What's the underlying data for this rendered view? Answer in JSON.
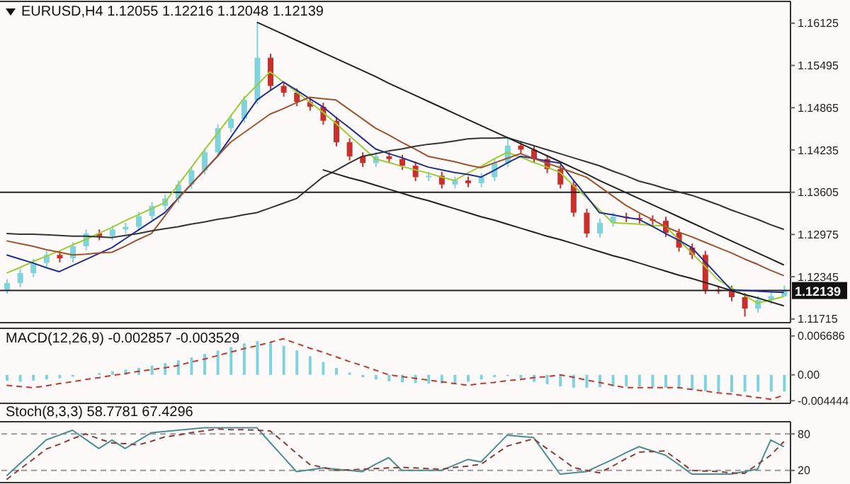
{
  "chart_data": [
    {
      "type": "candlestick",
      "title": "EURUSD,H4 1.12055 1.12216 1.12048 1.12139",
      "categories": [
        null,
        null,
        null,
        null,
        null,
        null,
        null,
        null,
        null,
        null,
        null,
        null,
        null,
        null,
        null,
        null,
        null,
        null,
        null,
        null,
        null,
        null,
        null,
        null,
        null,
        null,
        null,
        null,
        null,
        null,
        null,
        null,
        null,
        null,
        null,
        null,
        null,
        null,
        null,
        null,
        null,
        null,
        null,
        null,
        null,
        null,
        null,
        null,
        null,
        null,
        null,
        null,
        null,
        null,
        null,
        null,
        null,
        null,
        null,
        null
      ],
      "ohlc": [
        [
          1.1215,
          1.1231,
          1.1209,
          1.1225
        ],
        [
          1.1225,
          1.1246,
          1.1219,
          1.124
        ],
        [
          1.124,
          1.1261,
          1.1234,
          1.1255
        ],
        [
          1.1255,
          1.1273,
          1.1249,
          1.1267
        ],
        [
          1.1267,
          1.1273,
          1.1256,
          1.1262
        ],
        [
          1.1262,
          1.1286,
          1.1256,
          1.128
        ],
        [
          1.128,
          1.1305,
          1.1274,
          1.1299
        ],
        [
          1.1299,
          1.1305,
          1.1289,
          1.1295
        ],
        [
          1.1295,
          1.1311,
          1.1289,
          1.1305
        ],
        [
          1.1305,
          1.1315,
          1.1299,
          1.1309
        ],
        [
          1.1309,
          1.1331,
          1.1303,
          1.1325
        ],
        [
          1.1325,
          1.1346,
          1.1319,
          1.134
        ],
        [
          1.134,
          1.1357,
          1.1334,
          1.1351
        ],
        [
          1.1351,
          1.1378,
          1.1345,
          1.1372
        ],
        [
          1.1372,
          1.1399,
          1.1366,
          1.1393
        ],
        [
          1.1393,
          1.1426,
          1.1387,
          1.142
        ],
        [
          1.142,
          1.1462,
          1.1414,
          1.1456
        ],
        [
          1.1456,
          1.1476,
          1.145,
          1.147
        ],
        [
          1.147,
          1.1504,
          1.1464,
          1.1498
        ],
        [
          1.1498,
          1.1614,
          1.1492,
          1.1561
        ],
        [
          1.1561,
          1.1567,
          1.1513,
          1.1519
        ],
        [
          1.1519,
          1.1525,
          1.1503,
          1.1509
        ],
        [
          1.1509,
          1.1515,
          1.1489,
          1.1495
        ],
        [
          1.1495,
          1.1501,
          1.1482,
          1.1488
        ],
        [
          1.1488,
          1.1494,
          1.1461,
          1.1467
        ],
        [
          1.1467,
          1.1473,
          1.1429,
          1.1435
        ],
        [
          1.1435,
          1.1441,
          1.1408,
          1.1414
        ],
        [
          1.1414,
          1.142,
          1.1398,
          1.1404
        ],
        [
          1.1404,
          1.142,
          1.1398,
          1.1414
        ],
        [
          1.1414,
          1.142,
          1.1404,
          1.141
        ],
        [
          1.141,
          1.1416,
          1.1394,
          1.14
        ],
        [
          1.14,
          1.1406,
          1.1377,
          1.1383
        ],
        [
          1.1383,
          1.1391,
          1.1377,
          1.1385
        ],
        [
          1.1385,
          1.1391,
          1.1366,
          1.1372
        ],
        [
          1.1372,
          1.1384,
          1.1366,
          1.1378
        ],
        [
          1.1378,
          1.1384,
          1.1368,
          1.1374
        ],
        [
          1.1374,
          1.1389,
          1.1368,
          1.1383
        ],
        [
          1.1383,
          1.141,
          1.1377,
          1.1404
        ],
        [
          1.1404,
          1.1442,
          1.1398,
          1.143
        ],
        [
          1.143,
          1.1436,
          1.1418,
          1.1424
        ],
        [
          1.1424,
          1.143,
          1.1404,
          1.141
        ],
        [
          1.141,
          1.1416,
          1.1389,
          1.1395
        ],
        [
          1.1395,
          1.1401,
          1.1366,
          1.1372
        ],
        [
          1.1372,
          1.1378,
          1.1324,
          1.133
        ],
        [
          1.133,
          1.1336,
          1.1293,
          1.1299
        ],
        [
          1.1299,
          1.1321,
          1.1293,
          1.1315
        ],
        [
          1.1315,
          1.133,
          1.1309,
          1.1324
        ],
        [
          1.1324,
          1.133,
          1.1316,
          1.1322
        ],
        [
          1.1322,
          1.1328,
          1.1314,
          1.132
        ],
        [
          1.132,
          1.1326,
          1.1312,
          1.1318
        ],
        [
          1.1318,
          1.1324,
          1.1294,
          1.13
        ],
        [
          1.13,
          1.1306,
          1.1272,
          1.1278
        ],
        [
          1.1278,
          1.1284,
          1.1261,
          1.1267
        ],
        [
          1.1267,
          1.1273,
          1.1209,
          1.1215
        ],
        [
          1.1215,
          1.1221,
          1.1209,
          1.1215
        ],
        [
          1.1215,
          1.1221,
          1.1198,
          1.1204
        ],
        [
          1.1204,
          1.121,
          1.1175,
          1.1187
        ],
        [
          1.1187,
          1.1206,
          1.1181,
          1.12
        ],
        [
          1.12,
          1.1211,
          1.1194,
          1.12055
        ],
        [
          1.12055,
          1.12216,
          1.12048,
          1.12139
        ]
      ],
      "colors": [
        "#7fd3dd",
        "#7fd3dd",
        "#7fd3dd",
        "#7fd3dd",
        "#c8302c",
        "#7fd3dd",
        "#7fd3dd",
        "#c8302c",
        "#7fd3dd",
        "#7fd3dd",
        "#7fd3dd",
        "#7fd3dd",
        "#7fd3dd",
        "#7fd3dd",
        "#7fd3dd",
        "#7fd3dd",
        "#7fd3dd",
        "#7fd3dd",
        "#7fd3dd",
        "#7fd3dd",
        "#c8302c",
        "#c8302c",
        "#c8302c",
        "#c8302c",
        "#c8302c",
        "#c8302c",
        "#c8302c",
        "#c8302c",
        "#7fd3dd",
        "#c8302c",
        "#c8302c",
        "#c8302c",
        "#7fd3dd",
        "#c8302c",
        "#7fd3dd",
        "#c8302c",
        "#7fd3dd",
        "#7fd3dd",
        "#7fd3dd",
        "#c8302c",
        "#c8302c",
        "#c8302c",
        "#c8302c",
        "#c8302c",
        "#c8302c",
        "#7fd3dd",
        "#7fd3dd",
        "#c8302c",
        "#c8302c",
        "#c8302c",
        "#c8302c",
        "#c8302c",
        "#c8302c",
        "#c8302c",
        "#c8302c",
        "#c8302c",
        "#c8302c",
        "#7fd3dd",
        "#7fd3dd",
        "#7fd3dd"
      ],
      "ylim": [
        1.1166,
        1.1645
      ],
      "yticks": [
        1.16125,
        1.15495,
        1.14865,
        1.14235,
        1.13605,
        1.12975,
        1.12345,
        1.11715
      ],
      "tick_labels": "y",
      "ref_lines": [
        {
          "axis": "y",
          "value": 1.13605,
          "label": null,
          "color": "#222222"
        },
        {
          "axis": "y",
          "value": 1.12139,
          "label": "1.12139",
          "color": "#222222"
        }
      ]
    },
    {
      "type": "line",
      "categories": [
        null,
        null,
        null,
        null,
        null,
        null,
        null,
        null,
        null,
        null,
        null,
        null,
        null,
        null,
        null,
        null,
        null,
        null,
        null,
        null,
        null,
        null,
        null,
        null,
        null,
        null,
        null,
        null,
        null,
        null,
        null,
        null,
        null,
        null,
        null,
        null,
        null,
        null,
        null,
        null,
        null,
        null,
        null,
        null,
        null,
        null,
        null,
        null,
        null,
        null,
        null,
        null,
        null,
        null,
        null,
        null,
        null,
        null,
        null,
        null
      ],
      "series": [
        {
          "color": "#9acd32",
          "values": [
            1.124,
            1.1248,
            1.1257,
            1.1265,
            1.1273,
            1.1282,
            1.129,
            1.1299,
            1.1308,
            1.1318,
            1.1327,
            1.1336,
            1.1345,
            1.1371,
            1.1397,
            1.1423,
            1.1448,
            1.1474,
            1.15,
            1.152,
            1.154,
            1.1525,
            1.151,
            1.1495,
            1.148,
            1.1463,
            1.1445,
            1.1428,
            1.141,
            1.1405,
            1.1399,
            1.1394,
            1.1389,
            1.1383,
            1.1378,
            1.1389,
            1.1399,
            1.141,
            1.142,
            1.1413,
            1.1405,
            1.1398,
            1.139,
            1.1371,
            1.1353,
            1.1334,
            1.1315,
            1.1314,
            1.1313,
            1.1311,
            1.131,
            1.129,
            1.127,
            1.125,
            1.123,
            1.1218,
            1.1207,
            1.1195,
            1.12,
            1.1205
          ]
        },
        {
          "color": "#1f2f8f",
          "values": [
            1.1267,
            1.1261,
            1.1255,
            1.1248,
            1.1242,
            1.1251,
            1.126,
            1.1269,
            1.1278,
            1.1291,
            1.1304,
            1.1317,
            1.133,
            1.1351,
            1.1372,
            1.1393,
            1.1414,
            1.1442,
            1.147,
            1.1498,
            1.1512,
            1.1525,
            1.1513,
            1.15,
            1.1488,
            1.1472,
            1.1457,
            1.1441,
            1.1425,
            1.1418,
            1.1412,
            1.1405,
            1.1398,
            1.1394,
            1.139,
            1.1387,
            1.1383,
            1.1393,
            1.1404,
            1.1414,
            1.1411,
            1.1407,
            1.1404,
            1.1379,
            1.1355,
            1.133,
            1.1327,
            1.1323,
            1.132,
            1.131,
            1.1299,
            1.1289,
            1.1278,
            1.1257,
            1.1236,
            1.1215,
            1.1214,
            1.1213,
            1.1212,
            1.1211
          ]
        },
        {
          "color": "#a0522d",
          "values": [
            1.1288,
            1.1284,
            1.128,
            1.1275,
            1.1271,
            1.1267,
            1.1268,
            1.127,
            1.1271,
            1.128,
            1.129,
            1.1299,
            1.1325,
            1.1351,
            1.1372,
            1.1393,
            1.1414,
            1.1435,
            1.1449,
            1.1463,
            1.1477,
            1.1485,
            1.1494,
            1.1502,
            1.15,
            1.1498,
            1.1484,
            1.147,
            1.1456,
            1.1446,
            1.1435,
            1.1425,
            1.1414,
            1.141,
            1.1406,
            1.1401,
            1.1397,
            1.1404,
            1.1411,
            1.1418,
            1.1411,
            1.1404,
            1.1397,
            1.139,
            1.1383,
            1.1369,
            1.1355,
            1.1341,
            1.133,
            1.132,
            1.1309,
            1.1301,
            1.1294,
            1.1286,
            1.1278,
            1.127,
            1.1261,
            1.1253,
            1.1244,
            1.1236
          ]
        },
        {
          "color": "#333333",
          "values": [
            1.1299,
            1.1298,
            1.1298,
            1.1297,
            1.1296,
            1.1295,
            1.1295,
            1.1294,
            1.1293,
            1.1296,
            1.1299,
            1.1303,
            1.1306,
            1.1309,
            1.1313,
            1.1316,
            1.132,
            1.1323,
            1.1327,
            1.133,
            1.1337,
            1.1344,
            1.1351,
            1.1367,
            1.1383,
            1.1393,
            1.1404,
            1.1414,
            1.1418,
            1.1422,
            1.1425,
            1.1429,
            1.1432,
            1.1434,
            1.1437,
            1.144,
            1.1441,
            1.1441,
            1.1442,
            1.1436,
            1.143,
            1.1424,
            1.1418,
            1.1412,
            1.1406,
            1.14,
            1.1392,
            1.1385,
            1.1377,
            1.1372,
            1.1366,
            1.1361,
            1.1356,
            1.1349,
            1.1342,
            1.1334,
            1.1327,
            1.132,
            1.1312,
            1.1305
          ]
        },
        {
          "color": "#222222",
          "values": [
            null,
            null,
            null,
            null,
            null,
            null,
            null,
            null,
            null,
            null,
            null,
            null,
            null,
            null,
            null,
            null,
            null,
            null,
            null,
            1.1614,
            1.1605,
            1.1596,
            1.1587,
            1.1578,
            1.1569,
            1.156,
            1.1551,
            1.1542,
            1.1533,
            1.1523,
            1.1514,
            1.1505,
            1.1496,
            1.1487,
            1.1478,
            1.1469,
            1.146,
            1.1451,
            1.1442,
            1.1433,
            1.1424,
            1.1415,
            1.1406,
            1.1397,
            1.1388,
            1.1378,
            1.1369,
            1.136,
            1.1351,
            1.1342,
            1.1333,
            1.1324,
            1.1315,
            1.1306,
            1.1297,
            1.1288,
            1.1279,
            1.127,
            1.1261,
            1.1252
          ]
        },
        {
          "color": "#222222",
          "values": [
            null,
            null,
            null,
            null,
            null,
            null,
            null,
            null,
            null,
            null,
            null,
            null,
            null,
            null,
            null,
            null,
            null,
            null,
            null,
            null,
            null,
            null,
            null,
            null,
            1.1394,
            1.1388,
            1.1382,
            1.1377,
            1.1371,
            1.1365,
            1.1359,
            1.1353,
            1.1348,
            1.1342,
            1.1336,
            1.133,
            1.1324,
            1.1319,
            1.1313,
            1.1307,
            1.1301,
            1.1295,
            1.129,
            1.1284,
            1.1278,
            1.1272,
            1.1266,
            1.1261,
            1.1255,
            1.1249,
            1.1243,
            1.1237,
            1.1232,
            1.1226,
            1.122,
            1.1214,
            1.1208,
            1.1203,
            1.1197,
            1.1191
          ]
        }
      ],
      "ylim": [
        1.1166,
        1.1645
      ],
      "tick_labels": false
    },
    {
      "type": "bar",
      "title": "MACD(12,26,9) -0.002857 -0.003529",
      "categories": [
        null,
        null,
        null,
        null,
        null,
        null,
        null,
        null,
        null,
        null,
        null,
        null,
        null,
        null,
        null,
        null,
        null,
        null,
        null,
        null,
        null,
        null,
        null,
        null,
        null,
        null,
        null,
        null,
        null,
        null,
        null,
        null,
        null,
        null,
        null,
        null,
        null,
        null,
        null,
        null,
        null,
        null,
        null,
        null,
        null,
        null,
        null,
        null,
        null,
        null,
        null,
        null,
        null,
        null,
        null,
        null,
        null,
        null,
        null,
        null
      ],
      "series": [
        {
          "color": "#7fd3dd",
          "values": [
            -0.001,
            -0.0012,
            -0.001,
            -0.0008,
            -0.0006,
            -0.0003,
            0.0,
            0.0003,
            0.0006,
            0.0009,
            0.0012,
            0.0016,
            0.002,
            0.0025,
            0.003,
            0.0036,
            0.0042,
            0.0048,
            0.0054,
            0.0058,
            0.0056,
            0.005,
            0.0042,
            0.0032,
            0.0022,
            0.0012,
            0.0004,
            -0.0004,
            -0.0008,
            -0.0011,
            -0.0013,
            -0.0014,
            -0.0015,
            -0.0015,
            -0.0014,
            -0.0012,
            -0.0008,
            -0.0004,
            -0.0002,
            -0.0006,
            -0.0012,
            -0.0016,
            -0.002,
            -0.0022,
            -0.0022,
            -0.0021,
            -0.002,
            -0.002,
            -0.002,
            -0.0021,
            -0.0022,
            -0.0024,
            -0.0026,
            -0.0028,
            -0.003,
            -0.003,
            -0.0029,
            -0.0029,
            -0.0029,
            -0.002857
          ]
        }
      ],
      "ylim": [
        -0.0049,
        0.008
      ],
      "yticks": [
        0.006686,
        {
          "value": 0,
          "label": "0.00"
        },
        {
          "value": -0.004444,
          "label": "-0.004444"
        }
      ],
      "tick_labels": "y"
    },
    {
      "type": "line",
      "categories": [
        null,
        null,
        null,
        null,
        null,
        null,
        null,
        null,
        null,
        null,
        null,
        null,
        null,
        null,
        null,
        null,
        null,
        null,
        null,
        null,
        null,
        null,
        null,
        null,
        null,
        null,
        null,
        null,
        null,
        null,
        null,
        null,
        null,
        null,
        null,
        null,
        null,
        null,
        null,
        null,
        null,
        null,
        null,
        null,
        null,
        null,
        null,
        null,
        null,
        null,
        null,
        null,
        null,
        null,
        null,
        null,
        null,
        null,
        null,
        null
      ],
      "series": [
        {
          "color": "#c0392b",
          "line_style": "dashed",
          "values": [
            -0.0018,
            -0.002,
            -0.0022,
            -0.0019,
            -0.0015,
            -0.0012,
            -0.0008,
            -0.0005,
            -0.0001,
            0.0002,
            0.0006,
            0.0009,
            0.0012,
            0.0016,
            0.0022,
            0.0027,
            0.0033,
            0.0039,
            0.0045,
            0.005,
            0.0056,
            0.0062,
            0.0054,
            0.0046,
            0.0039,
            0.0031,
            0.0023,
            0.0016,
            0.0008,
            0.0,
            -0.0003,
            -0.0006,
            -0.0009,
            -0.0012,
            -0.0015,
            -0.0018,
            -0.0015,
            -0.0013,
            -0.001,
            -0.0008,
            -0.0005,
            -0.0003,
            0.0,
            -0.0004,
            -0.0009,
            -0.0013,
            -0.0018,
            -0.0022,
            -0.0022,
            -0.0022,
            -0.0022,
            -0.0022,
            -0.0025,
            -0.0028,
            -0.0031,
            -0.0033,
            -0.0036,
            -0.0039,
            -0.0042,
            -0.003529
          ]
        }
      ],
      "ylim": [
        -0.0049,
        0.008
      ],
      "tick_labels": false
    },
    {
      "type": "line",
      "title": "Stoch(8,3,3) 58.7781 67.4296",
      "categories": [
        null,
        null,
        null,
        null,
        null,
        null,
        null,
        null,
        null,
        null,
        null,
        null,
        null,
        null,
        null,
        null,
        null,
        null,
        null,
        null,
        null,
        null,
        null,
        null,
        null,
        null,
        null,
        null,
        null,
        null,
        null,
        null,
        null,
        null,
        null,
        null,
        null,
        null,
        null,
        null,
        null,
        null,
        null,
        null,
        null,
        null,
        null,
        null,
        null,
        null,
        null,
        null,
        null,
        null,
        null,
        null,
        null,
        null,
        null,
        null
      ],
      "series": [
        {
          "color": "#4a8f8f",
          "values": [
            11,
            31,
            50,
            70,
            78,
            86,
            71,
            56,
            70,
            56,
            69,
            82,
            84,
            86,
            88,
            90,
            90,
            90,
            90,
            90,
            66,
            42,
            18,
            21,
            24,
            22,
            20,
            18,
            30,
            41,
            20,
            20,
            20,
            20,
            29,
            38,
            34,
            56,
            78,
            76,
            74,
            44,
            14,
            16,
            18,
            28,
            38,
            49,
            59,
            52,
            45,
            30,
            14,
            14,
            14,
            14,
            18,
            22,
            70,
            58.7781
          ]
        },
        {
          "color": "#8b3a3a",
          "line_style": "dashed",
          "values": [
            5,
            22,
            38,
            55,
            63,
            72,
            80,
            72,
            65,
            64,
            62,
            68,
            75,
            78,
            82,
            85,
            88,
            87,
            87,
            86,
            85,
            67,
            48,
            30,
            25,
            20,
            21,
            22,
            23,
            24,
            25,
            24,
            23,
            22,
            25,
            27,
            30,
            45,
            60,
            66,
            72,
            56,
            41,
            25,
            20,
            16,
            27,
            39,
            50,
            51,
            52,
            36,
            20,
            19,
            18,
            16,
            15,
            30,
            45,
            67.4296
          ]
        }
      ],
      "ylim": [
        0,
        100
      ],
      "yticks": [
        80,
        20
      ],
      "tick_labels": "y",
      "ref_lines": [
        {
          "axis": "y",
          "value": 80,
          "label": null,
          "color": "#999999",
          "line_style": "dashed"
        },
        {
          "axis": "y",
          "value": 20,
          "label": null,
          "color": "#999999",
          "line_style": "dashed"
        }
      ]
    }
  ]
}
